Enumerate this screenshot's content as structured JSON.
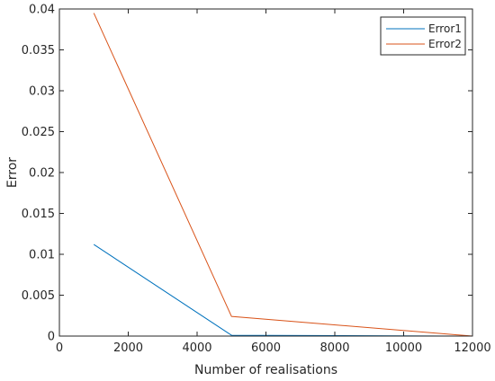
{
  "chart_data": {
    "type": "line",
    "title": "",
    "xlabel": "Number of realisations",
    "ylabel": "Error",
    "xlim": [
      0,
      12000
    ],
    "ylim": [
      0,
      0.04
    ],
    "xticks": [
      0,
      2000,
      4000,
      6000,
      8000,
      10000,
      12000
    ],
    "xtick_labels": [
      "0",
      "2000",
      "4000",
      "6000",
      "8000",
      "10000",
      "12000"
    ],
    "yticks": [
      0,
      0.005,
      0.01,
      0.015,
      0.02,
      0.025,
      0.03,
      0.035,
      0.04
    ],
    "ytick_labels": [
      "0",
      "0.005",
      "0.01",
      "0.015",
      "0.02",
      "0.025",
      "0.03",
      "0.035",
      "0.04"
    ],
    "grid": false,
    "legend_position": "top-right",
    "x": [
      1000,
      5000,
      12000
    ],
    "series": [
      {
        "name": "Error1",
        "color": "#0072BD",
        "values": [
          0.0112,
          0.0001,
          0.0
        ]
      },
      {
        "name": "Error2",
        "color": "#D95319",
        "values": [
          0.0395,
          0.0024,
          0.0
        ]
      }
    ]
  }
}
